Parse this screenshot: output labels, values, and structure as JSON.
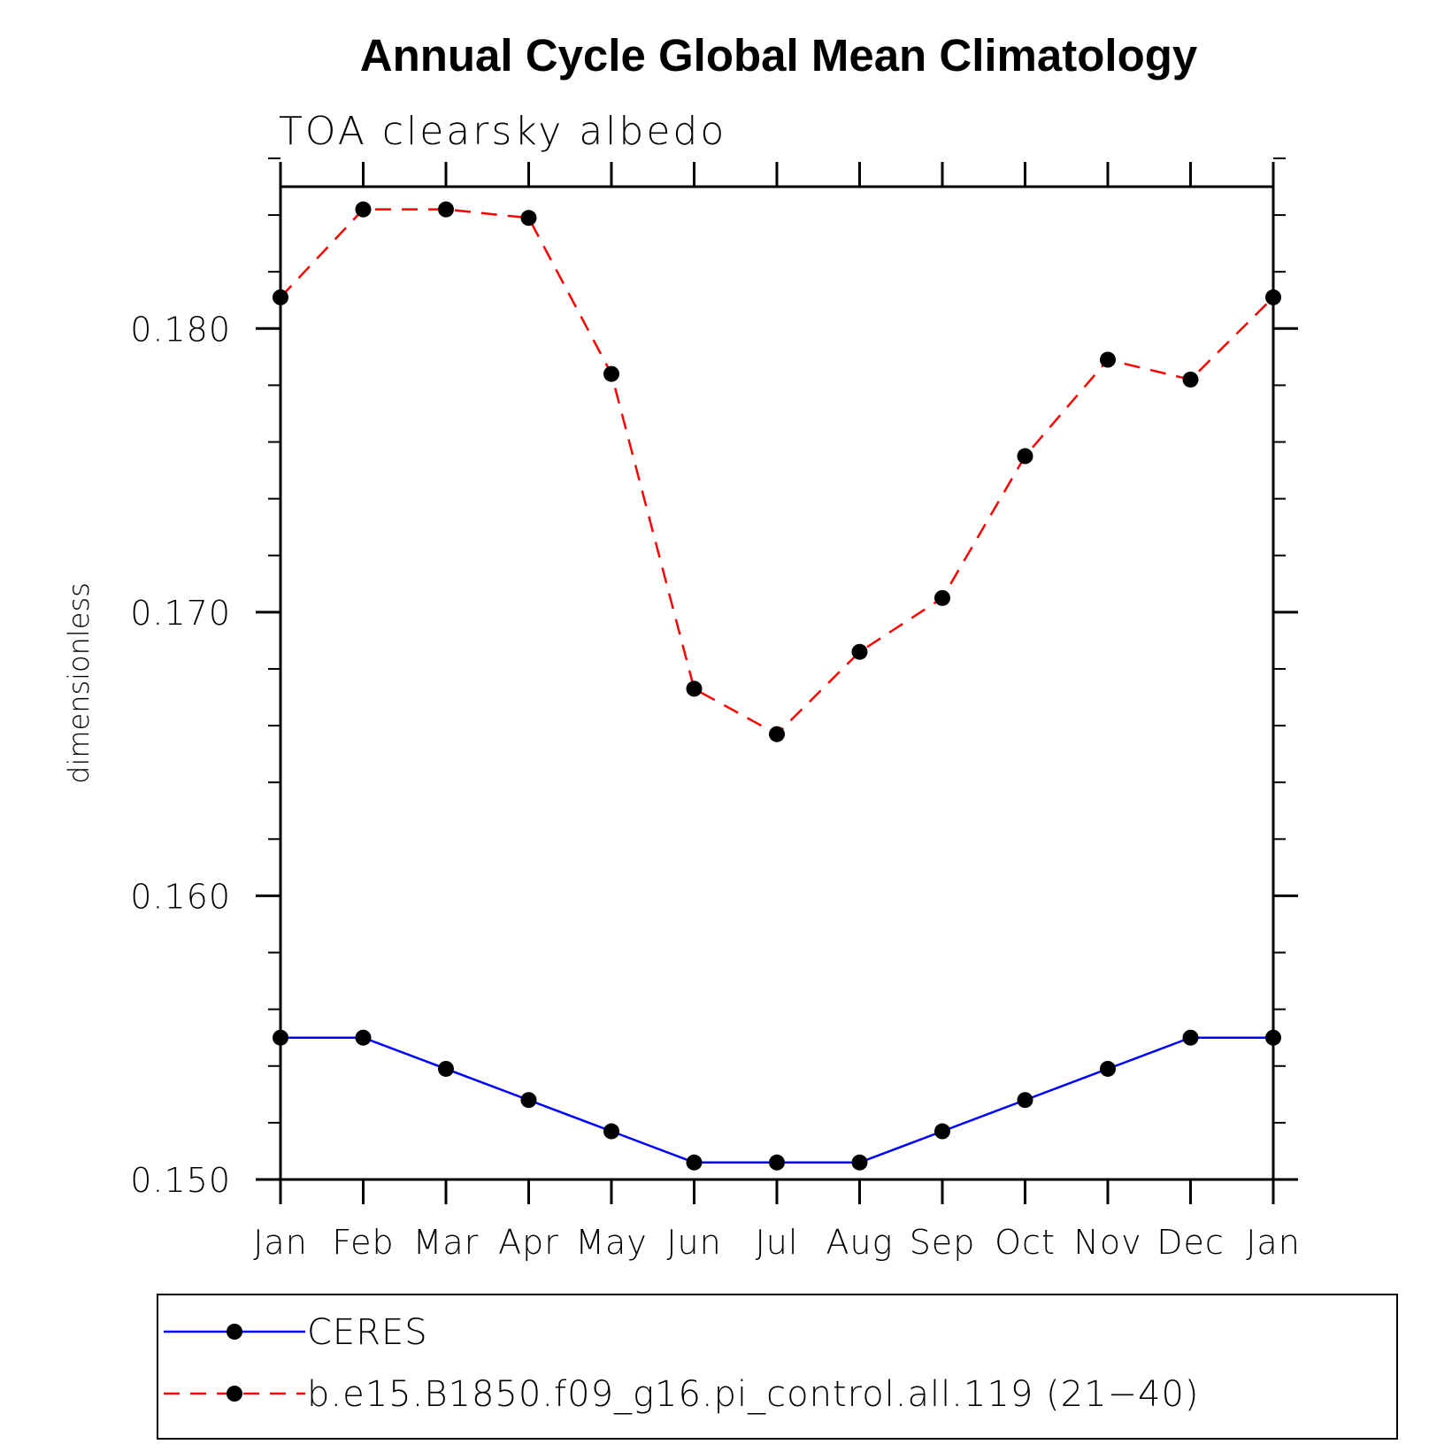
{
  "chart_data": {
    "type": "line",
    "title": "Annual Cycle Global Mean Climatology",
    "subtitle": "TOA clearsky albedo",
    "xlabel": "",
    "ylabel": "dimensionless",
    "categories": [
      "Jan",
      "Feb",
      "Mar",
      "Apr",
      "May",
      "Jun",
      "Jul",
      "Aug",
      "Sep",
      "Oct",
      "Nov",
      "Dec",
      "Jan"
    ],
    "ylim": [
      0.15,
      0.185
    ],
    "yticks": [
      "0.150",
      "0.160",
      "0.170",
      "0.180"
    ],
    "ytick_values": [
      0.15,
      0.16,
      0.17,
      0.18
    ],
    "grid": false,
    "legend_position": "bottom",
    "series": [
      {
        "name": "CERES",
        "color": "#0000ff",
        "style": "solid",
        "marker": "circle",
        "values": [
          0.155,
          0.155,
          0.1539,
          0.1528,
          0.1517,
          0.1506,
          0.1506,
          0.1506,
          0.1517,
          0.1528,
          0.1539,
          0.155,
          0.155
        ]
      },
      {
        "name": "b.e15.B1850.f09_g16.pi_control.all.119 (21−40)",
        "color": "#ff0000",
        "style": "dashed",
        "marker": "circle",
        "values": [
          0.1811,
          0.1842,
          0.1842,
          0.1839,
          0.1784,
          0.1673,
          0.1657,
          0.1686,
          0.1705,
          0.1755,
          0.1789,
          0.1782,
          0.1811
        ]
      }
    ]
  }
}
